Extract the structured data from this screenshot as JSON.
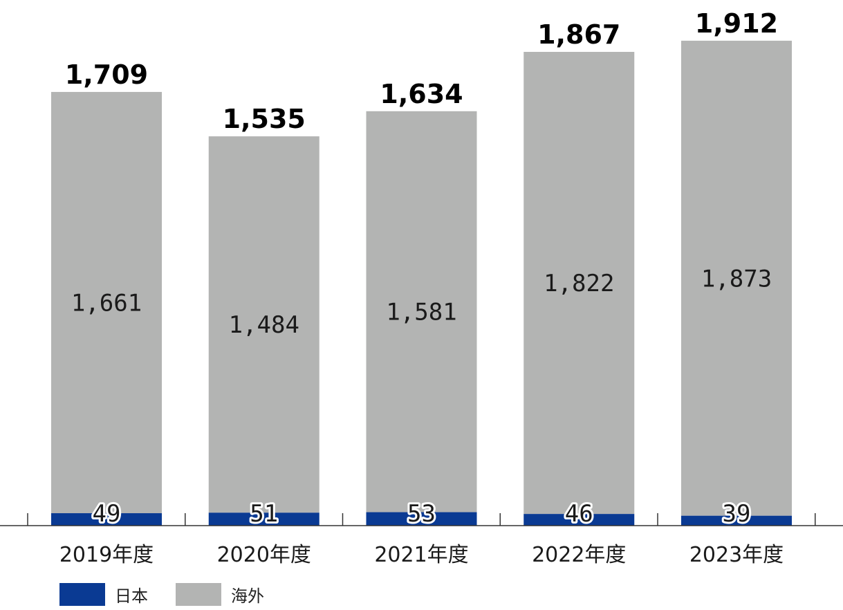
{
  "chart_data": {
    "type": "bar",
    "stacked": true,
    "categories": [
      "2019年度",
      "2020年度",
      "2021年度",
      "2022年度",
      "2023年度"
    ],
    "series": [
      {
        "name": "日本",
        "values": [
          49,
          51,
          53,
          46,
          39
        ],
        "color": "#0a3a93"
      },
      {
        "name": "海外",
        "values": [
          1661,
          1484,
          1581,
          1822,
          1873
        ],
        "color": "#b3b4b3"
      }
    ],
    "totals": [
      1709,
      1535,
      1634,
      1867,
      1912
    ],
    "total_labels": [
      "1,709",
      "1,535",
      "1,634",
      "1,867",
      "1,912"
    ],
    "domestic_labels": [
      "49",
      "51",
      "53",
      "46",
      "39"
    ],
    "overseas_labels": [
      "1,661",
      "1,484",
      "1,581",
      "1,822",
      "1,873"
    ],
    "ylim": [
      0,
      1950
    ],
    "grid": false,
    "legend_position": "bottom-left"
  },
  "legend": {
    "items": [
      {
        "label": "日本",
        "color": "#0a3a93"
      },
      {
        "label": "海外",
        "color": "#b3b4b3"
      }
    ]
  }
}
